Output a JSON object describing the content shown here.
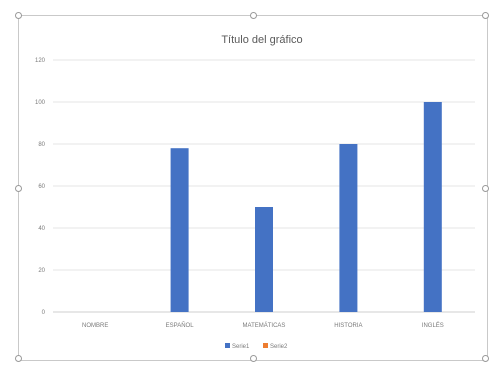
{
  "chart_data": {
    "type": "bar",
    "title": "Título del gráfico",
    "categories": [
      "NOMBRE",
      "ESPAÑOL",
      "MATEMÁTICAS",
      "HISTORIA",
      "INGLÉS"
    ],
    "series": [
      {
        "name": "Serie1",
        "values": [
          0,
          78,
          50,
          80,
          100
        ],
        "color": "#4472c4"
      },
      {
        "name": "Serie2",
        "values": [
          0,
          0,
          0,
          0,
          0
        ],
        "color": "#ed7d31"
      }
    ],
    "yticks": [
      "0",
      "20",
      "40",
      "60",
      "80",
      "100",
      "120"
    ],
    "ylim": [
      0,
      120
    ],
    "grid": true,
    "legend": "bottom"
  }
}
